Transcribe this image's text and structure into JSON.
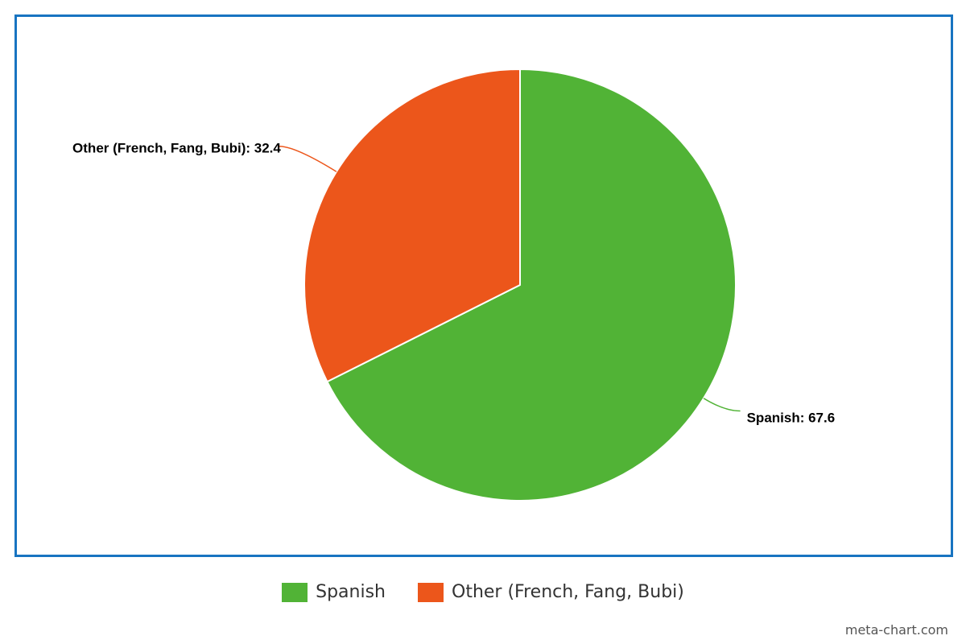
{
  "chart_data": {
    "type": "pie",
    "title": "",
    "slices": [
      {
        "name": "Spanish",
        "value": 67.6,
        "color": "#51b336",
        "label": "Spanish: 67.6"
      },
      {
        "name": "Other (French, Fang, Bubi)",
        "value": 32.4,
        "color": "#ec561b",
        "label": "Other (French, Fang, Bubi): 32.4"
      }
    ],
    "legend_position": "bottom-center"
  },
  "legend": {
    "items": [
      {
        "label": "Spanish",
        "color": "#51b336"
      },
      {
        "label": "Other (French, Fang, Bubi)",
        "color": "#ec561b"
      }
    ]
  },
  "colors": {
    "frame_border": "#1874c1",
    "slice_border": "#ffffff"
  },
  "credit": "meta-chart.com"
}
